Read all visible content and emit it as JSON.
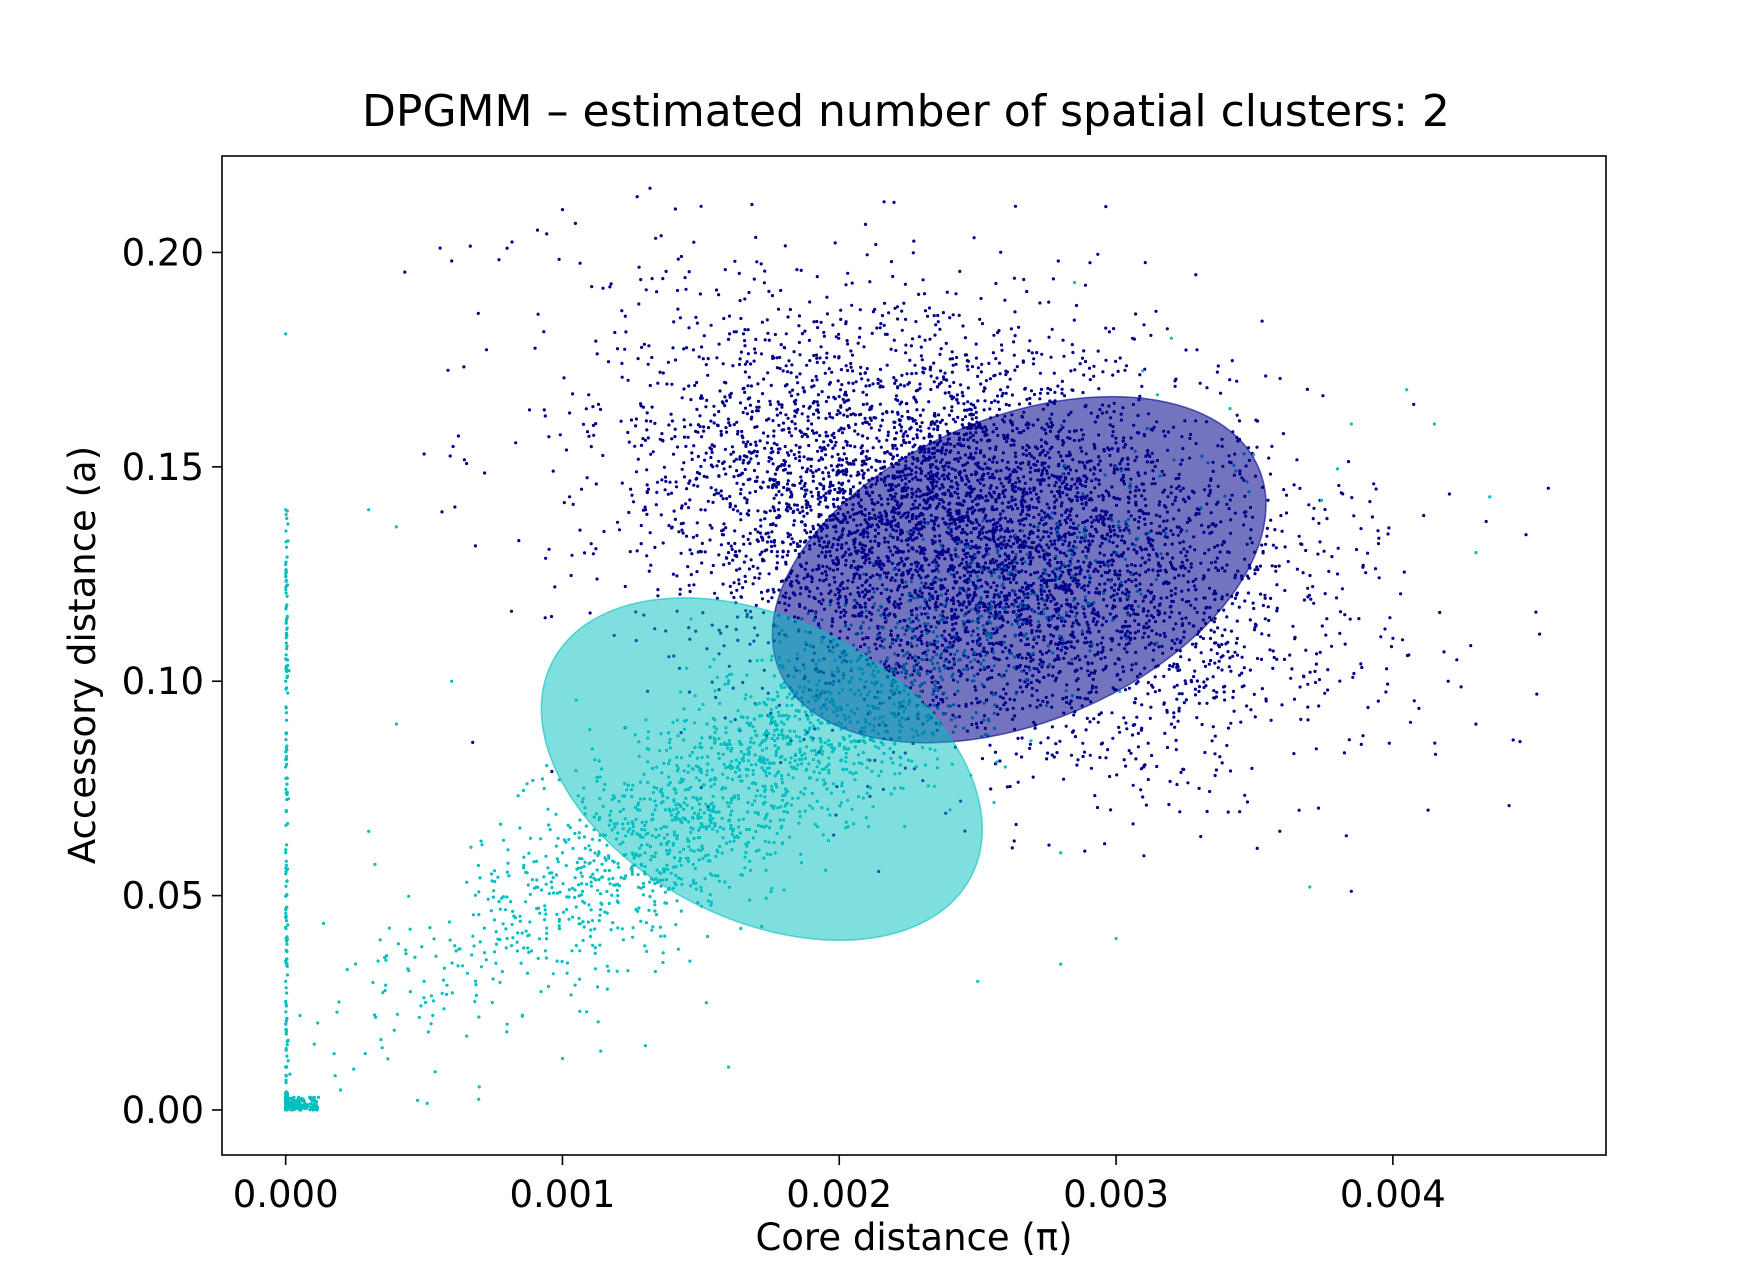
{
  "chart_data": {
    "type": "scatter",
    "title": "DPGMM – estimated number of spatial clusters: 2",
    "xlabel": "Core distance (π)",
    "ylabel": "Accessory distance (a)",
    "xlim": [
      -0.00023,
      0.00477
    ],
    "ylim": [
      -0.0105,
      0.2225
    ],
    "xticks": [
      0.0,
      0.001,
      0.002,
      0.003,
      0.004
    ],
    "xtick_labels": [
      "0.000",
      "0.001",
      "0.002",
      "0.003",
      "0.004"
    ],
    "yticks": [
      0.0,
      0.05,
      0.1,
      0.15,
      0.2
    ],
    "ytick_labels": [
      "0.00",
      "0.05",
      "0.10",
      "0.15",
      "0.20"
    ],
    "grid": false,
    "legend": "none",
    "series": [
      {
        "color": "#00008b",
        "approx_points": 6000,
        "mean": [
          0.00245,
          0.135
        ],
        "points": [
          [
            0.00178,
            0.15
          ],
          [
            0.002,
            0.145
          ],
          [
            0.0022,
            0.143
          ],
          [
            0.0024,
            0.14
          ],
          [
            0.0026,
            0.135
          ],
          [
            0.0028,
            0.13
          ],
          [
            0.003,
            0.125
          ],
          [
            0.0032,
            0.12
          ],
          [
            0.0034,
            0.115
          ],
          [
            0.0035,
            0.112
          ],
          [
            0.0019,
            0.16
          ],
          [
            0.00215,
            0.17
          ],
          [
            0.0023,
            0.175
          ],
          [
            0.00255,
            0.165
          ],
          [
            0.00275,
            0.16
          ],
          [
            0.003,
            0.15
          ],
          [
            0.0033,
            0.14
          ],
          [
            0.0036,
            0.135
          ],
          [
            0.0038,
            0.125
          ],
          [
            0.004,
            0.11
          ],
          [
            0.0042,
            0.1
          ],
          [
            0.0043,
            0.09
          ],
          [
            0.00442,
            0.071
          ],
          [
            0.00453,
            0.111
          ],
          [
            0.00452,
            0.097
          ],
          [
            0.00351,
            0.061
          ],
          [
            0.00385,
            0.051
          ],
          [
            0.0006,
            0.198
          ],
          [
            0.0008,
            0.201
          ],
          [
            0.001,
            0.21
          ],
          [
            0.00127,
            0.213
          ],
          [
            0.0005,
            0.153
          ],
          [
            0.0013,
            0.14
          ],
          [
            0.0015,
            0.14
          ],
          [
            0.0016,
            0.13
          ],
          [
            0.0017,
            0.155
          ],
          [
            0.002,
            0.11
          ],
          [
            0.0022,
            0.1
          ],
          [
            0.0025,
            0.095
          ],
          [
            0.0027,
            0.105
          ],
          [
            0.003,
            0.098
          ],
          [
            0.0032,
            0.09
          ],
          [
            0.0034,
            0.085
          ],
          [
            0.0031,
            0.08
          ],
          [
            0.0033,
            0.075
          ]
        ]
      },
      {
        "color": "#00bfbf",
        "approx_points": 2500,
        "mean": [
          0.00172,
          0.08
        ],
        "points": [
          [
            2e-05,
            0.0
          ],
          [
            5e-05,
            0.0
          ],
          [
            0.0001,
            0.0
          ],
          [
            0.0,
            0.01
          ],
          [
            0.0,
            0.02
          ],
          [
            0.0,
            0.03
          ],
          [
            0.0,
            0.045
          ],
          [
            0.0,
            0.06
          ],
          [
            0.0,
            0.08
          ],
          [
            0.0,
            0.1
          ],
          [
            0.0,
            0.14
          ],
          [
            0.0,
            0.181
          ],
          [
            0.0005,
            0.03
          ],
          [
            0.0008,
            0.04
          ],
          [
            0.001,
            0.06
          ],
          [
            0.0012,
            0.05
          ],
          [
            0.0014,
            0.07
          ],
          [
            0.0016,
            0.08
          ],
          [
            0.0018,
            0.09
          ],
          [
            0.002,
            0.085
          ],
          [
            0.0022,
            0.075
          ],
          [
            0.0024,
            0.07
          ],
          [
            0.0026,
            0.08
          ],
          [
            0.0028,
            0.06
          ],
          [
            0.003,
            0.04
          ],
          [
            0.0008,
            0.02
          ],
          [
            0.001,
            0.012
          ],
          [
            0.0013,
            0.015
          ],
          [
            0.0016,
            0.01
          ],
          [
            0.0003,
            0.065
          ],
          [
            0.0004,
            0.09
          ],
          [
            0.0006,
            0.1
          ],
          [
            0.0004,
            0.136
          ],
          [
            0.0003,
            0.14
          ],
          [
            0.00285,
            0.193
          ],
          [
            0.003,
            0.15
          ],
          [
            0.0032,
            0.18
          ],
          [
            0.00385,
            0.16
          ],
          [
            0.00405,
            0.168
          ],
          [
            0.00415,
            0.16
          ],
          [
            0.00435,
            0.143
          ],
          [
            0.0043,
            0.13
          ],
          [
            0.0037,
            0.052
          ],
          [
            0.0028,
            0.034
          ],
          [
            0.0025,
            0.03
          ]
        ]
      }
    ],
    "ellipses": [
      {
        "color": "#00008b",
        "fill_opacity": 0.55,
        "center": [
          0.00265,
          0.126
        ],
        "semi_axes": [
          0.00094,
          0.0355
        ],
        "rotation_deg": -23
      },
      {
        "color": "#00bfbf",
        "fill_opacity": 0.5,
        "center": [
          0.00172,
          0.0795
        ],
        "semi_axes": [
          0.00085,
          0.035
        ],
        "rotation_deg": 27
      }
    ]
  }
}
